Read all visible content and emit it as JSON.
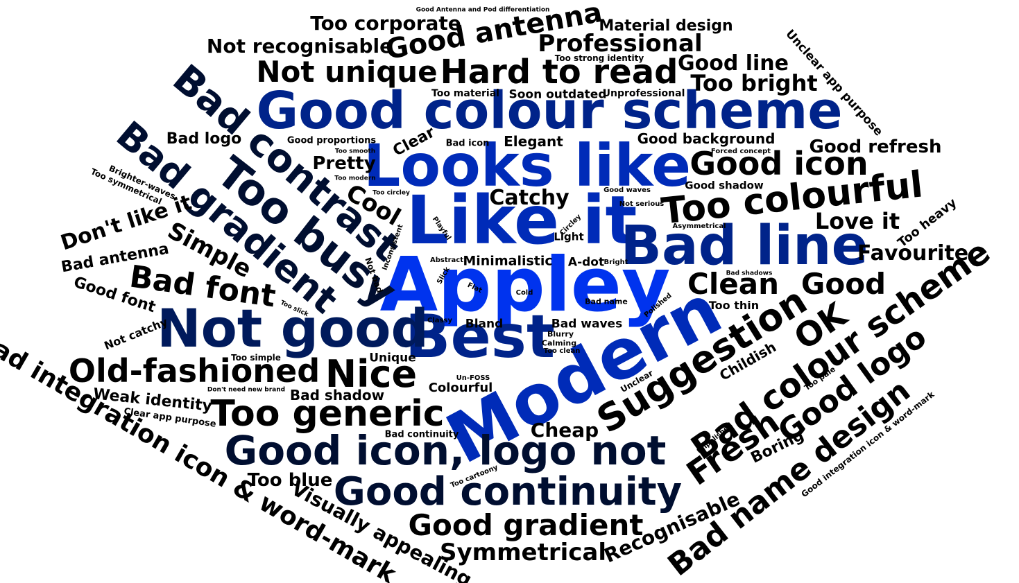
{
  "words": [
    "Appley",
    "Modern",
    "Like it",
    "Looks like",
    "Best",
    "Good colour scheme",
    "Bad line",
    "Not good",
    "Too busy",
    "Bad contrast",
    "Bad gradient",
    "Good icon, logo not",
    "Good continuity",
    "Hard to read",
    "Good antenna",
    "Not unique",
    "Too colourful",
    "Good icon",
    "Suggestion",
    "Bad colour scheme",
    "Too generic",
    "Nice",
    "Old-fashioned",
    "Clean",
    "Good",
    "OK",
    "Fresh",
    "Good logo",
    "Bad name design",
    "Good gradient",
    "Symmetrical",
    "Bad integration icon & word-mark",
    "Visually appealing",
    "Bad font",
    "Simple",
    "Cool",
    "Don't like it",
    "Love it",
    "Favourite",
    "Professional",
    "Too corporate",
    "Not recognisable",
    "Good line",
    "Too bright",
    "Material design",
    "Recognisable",
    "Too blue",
    "Cheap",
    "Catchy",
    "Pretty",
    "Good refresh",
    "Good background",
    "Weak identity",
    "Bad shadow",
    "Good font",
    "Bad antenna",
    "Bad logo",
    "Clear",
    "Elegant",
    "Childish",
    "Boring",
    "Minimalistic",
    "Colourful",
    "Unique",
    "A-dot",
    "Light",
    "Bland",
    "Bad waves",
    "Too thin",
    "Not catchy",
    "Too heavy",
    "Unclear app purpose",
    "Good proportions",
    "Bad icon",
    "Soon outdated",
    "Too material",
    "Unprofessional",
    "Good shadow",
    "Too strong identity",
    "Good Antenna and Pod differentiation",
    "Too smooth",
    "Too modern",
    "Too circley",
    "Brighter-waves",
    "Too symmetrical",
    "Playful",
    "Inconsistent",
    "Not bad",
    "Abstract",
    "Slick",
    "Flat",
    "Cold",
    "Classy",
    "Blurry",
    "Calming",
    "Too clean",
    "Bad name",
    "Polished",
    "Unclear",
    "Too pale",
    "Good waves",
    "Not serious",
    "Circley",
    "Asymmetrical",
    "Bright",
    "Bad shadows",
    "Too slick",
    "Too simple",
    "Don't need new brand",
    "Clear app purpose",
    "Bad continuity",
    "Un-FOSS",
    "Too cartoony",
    "Unpolished",
    "Forced concept",
    "Good integration icon & word-mark"
  ]
}
